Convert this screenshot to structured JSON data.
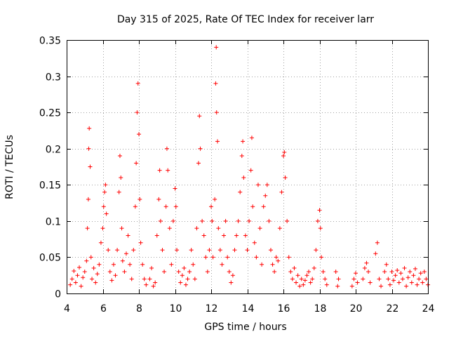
{
  "chart_data": {
    "type": "scatter",
    "title": "Day 315 of 2025, Rate Of TEC Index for receiver larr",
    "xlabel": "GPS time / hours",
    "ylabel": "ROTI / TECUs",
    "xlim": [
      4,
      24
    ],
    "ylim": [
      0,
      0.35
    ],
    "x_ticks": [
      "4",
      "6",
      "8",
      "10",
      "12",
      "14",
      "16",
      "18",
      "20",
      "22",
      "24"
    ],
    "y_ticks": [
      "0",
      "0.05",
      "0.1",
      "0.15",
      "0.2",
      "0.25",
      "0.3",
      "0.35"
    ],
    "grid": true,
    "marker": "plus",
    "color": "#ff0000",
    "series": [
      {
        "points": [
          [
            4.2,
            0.012
          ],
          [
            4.3,
            0.02
          ],
          [
            4.4,
            0.031
          ],
          [
            4.5,
            0.015
          ],
          [
            4.6,
            0.025
          ],
          [
            4.7,
            0.036
          ],
          [
            4.8,
            0.01
          ],
          [
            4.9,
            0.022
          ],
          [
            5.0,
            0.03
          ],
          [
            5.1,
            0.045
          ],
          [
            5.15,
            0.09
          ],
          [
            5.2,
            0.13
          ],
          [
            5.22,
            0.2
          ],
          [
            5.25,
            0.228
          ],
          [
            5.3,
            0.175
          ],
          [
            5.35,
            0.05
          ],
          [
            5.4,
            0.02
          ],
          [
            5.5,
            0.035
          ],
          [
            5.6,
            0.015
          ],
          [
            5.7,
            0.027
          ],
          [
            5.8,
            0.04
          ],
          [
            5.9,
            0.07
          ],
          [
            6.0,
            0.09
          ],
          [
            6.05,
            0.12
          ],
          [
            6.1,
            0.14
          ],
          [
            6.15,
            0.15
          ],
          [
            6.2,
            0.11
          ],
          [
            6.3,
            0.06
          ],
          [
            6.4,
            0.03
          ],
          [
            6.5,
            0.018
          ],
          [
            6.6,
            0.04
          ],
          [
            6.7,
            0.025
          ],
          [
            6.8,
            0.06
          ],
          [
            6.9,
            0.14
          ],
          [
            6.95,
            0.19
          ],
          [
            7.0,
            0.16
          ],
          [
            7.05,
            0.09
          ],
          [
            7.1,
            0.045
          ],
          [
            7.2,
            0.03
          ],
          [
            7.3,
            0.055
          ],
          [
            7.4,
            0.08
          ],
          [
            7.5,
            0.04
          ],
          [
            7.6,
            0.02
          ],
          [
            7.7,
            0.06
          ],
          [
            7.8,
            0.12
          ],
          [
            7.85,
            0.18
          ],
          [
            7.9,
            0.25
          ],
          [
            7.95,
            0.29
          ],
          [
            8.0,
            0.22
          ],
          [
            8.05,
            0.13
          ],
          [
            8.1,
            0.07
          ],
          [
            8.2,
            0.04
          ],
          [
            8.3,
            0.02
          ],
          [
            8.4,
            0.012
          ],
          [
            8.6,
            0.02
          ],
          [
            8.7,
            0.035
          ],
          [
            8.8,
            0.01
          ],
          [
            8.9,
            0.015
          ],
          [
            9.0,
            0.08
          ],
          [
            9.1,
            0.13
          ],
          [
            9.15,
            0.17
          ],
          [
            9.2,
            0.1
          ],
          [
            9.3,
            0.06
          ],
          [
            9.4,
            0.03
          ],
          [
            9.5,
            0.12
          ],
          [
            9.55,
            0.2
          ],
          [
            9.6,
            0.17
          ],
          [
            9.7,
            0.09
          ],
          [
            9.8,
            0.04
          ],
          [
            9.9,
            0.1
          ],
          [
            10.0,
            0.145
          ],
          [
            10.05,
            0.12
          ],
          [
            10.1,
            0.06
          ],
          [
            10.2,
            0.03
          ],
          [
            10.3,
            0.015
          ],
          [
            10.4,
            0.025
          ],
          [
            10.5,
            0.035
          ],
          [
            10.6,
            0.012
          ],
          [
            10.7,
            0.02
          ],
          [
            10.8,
            0.03
          ],
          [
            10.9,
            0.06
          ],
          [
            11.0,
            0.04
          ],
          [
            11.1,
            0.02
          ],
          [
            11.2,
            0.09
          ],
          [
            11.3,
            0.18
          ],
          [
            11.35,
            0.245
          ],
          [
            11.4,
            0.2
          ],
          [
            11.5,
            0.1
          ],
          [
            11.6,
            0.08
          ],
          [
            11.7,
            0.05
          ],
          [
            11.8,
            0.03
          ],
          [
            11.9,
            0.06
          ],
          [
            12.0,
            0.12
          ],
          [
            12.05,
            0.1
          ],
          [
            12.1,
            0.05
          ],
          [
            12.2,
            0.13
          ],
          [
            12.25,
            0.29
          ],
          [
            12.28,
            0.34
          ],
          [
            12.3,
            0.25
          ],
          [
            12.35,
            0.21
          ],
          [
            12.4,
            0.09
          ],
          [
            12.5,
            0.06
          ],
          [
            12.6,
            0.04
          ],
          [
            12.7,
            0.08
          ],
          [
            12.8,
            0.1
          ],
          [
            12.9,
            0.05
          ],
          [
            13.0,
            0.03
          ],
          [
            13.1,
            0.015
          ],
          [
            13.2,
            0.025
          ],
          [
            13.3,
            0.06
          ],
          [
            13.4,
            0.08
          ],
          [
            13.5,
            0.1
          ],
          [
            13.6,
            0.14
          ],
          [
            13.7,
            0.19
          ],
          [
            13.75,
            0.21
          ],
          [
            13.8,
            0.16
          ],
          [
            13.9,
            0.08
          ],
          [
            14.0,
            0.06
          ],
          [
            14.1,
            0.1
          ],
          [
            14.2,
            0.17
          ],
          [
            14.25,
            0.215
          ],
          [
            14.3,
            0.12
          ],
          [
            14.4,
            0.07
          ],
          [
            14.5,
            0.05
          ],
          [
            14.6,
            0.15
          ],
          [
            14.7,
            0.09
          ],
          [
            14.8,
            0.04
          ],
          [
            14.9,
            0.12
          ],
          [
            15.0,
            0.135
          ],
          [
            15.1,
            0.15
          ],
          [
            15.2,
            0.1
          ],
          [
            15.3,
            0.06
          ],
          [
            15.4,
            0.04
          ],
          [
            15.5,
            0.03
          ],
          [
            15.6,
            0.05
          ],
          [
            15.7,
            0.045
          ],
          [
            15.8,
            0.09
          ],
          [
            15.9,
            0.14
          ],
          [
            16.0,
            0.19
          ],
          [
            16.05,
            0.195
          ],
          [
            16.1,
            0.16
          ],
          [
            16.2,
            0.1
          ],
          [
            16.3,
            0.05
          ],
          [
            16.4,
            0.03
          ],
          [
            16.5,
            0.02
          ],
          [
            16.6,
            0.035
          ],
          [
            16.7,
            0.015
          ],
          [
            16.8,
            0.025
          ],
          [
            16.9,
            0.01
          ],
          [
            17.0,
            0.02
          ],
          [
            17.1,
            0.012
          ],
          [
            17.2,
            0.018
          ],
          [
            17.3,
            0.025
          ],
          [
            17.4,
            0.03
          ],
          [
            17.5,
            0.015
          ],
          [
            17.6,
            0.02
          ],
          [
            17.7,
            0.035
          ],
          [
            17.8,
            0.06
          ],
          [
            17.9,
            0.1
          ],
          [
            18.0,
            0.115
          ],
          [
            18.05,
            0.09
          ],
          [
            18.1,
            0.05
          ],
          [
            18.2,
            0.03
          ],
          [
            18.3,
            0.02
          ],
          [
            18.4,
            0.012
          ],
          [
            18.9,
            0.03
          ],
          [
            19.0,
            0.01
          ],
          [
            19.05,
            0.02
          ],
          [
            19.8,
            0.01
          ],
          [
            19.9,
            0.02
          ],
          [
            20.0,
            0.028
          ],
          [
            20.1,
            0.015
          ],
          [
            20.4,
            0.02
          ],
          [
            20.5,
            0.035
          ],
          [
            20.6,
            0.042
          ],
          [
            20.7,
            0.03
          ],
          [
            20.8,
            0.015
          ],
          [
            21.1,
            0.055
          ],
          [
            21.2,
            0.07
          ],
          [
            21.3,
            0.02
          ],
          [
            21.4,
            0.01
          ],
          [
            21.6,
            0.03
          ],
          [
            21.7,
            0.04
          ],
          [
            21.8,
            0.02
          ],
          [
            21.9,
            0.012
          ],
          [
            22.0,
            0.03
          ],
          [
            22.1,
            0.018
          ],
          [
            22.2,
            0.025
          ],
          [
            22.3,
            0.032
          ],
          [
            22.4,
            0.015
          ],
          [
            22.5,
            0.028
          ],
          [
            22.6,
            0.02
          ],
          [
            22.7,
            0.035
          ],
          [
            22.8,
            0.01
          ],
          [
            22.9,
            0.022
          ],
          [
            23.0,
            0.03
          ],
          [
            23.1,
            0.015
          ],
          [
            23.2,
            0.025
          ],
          [
            23.3,
            0.034
          ],
          [
            23.4,
            0.012
          ],
          [
            23.5,
            0.02
          ],
          [
            23.6,
            0.028
          ],
          [
            23.7,
            0.015
          ],
          [
            23.8,
            0.03
          ],
          [
            23.9,
            0.02
          ],
          [
            24.0,
            0.012
          ]
        ]
      }
    ]
  }
}
